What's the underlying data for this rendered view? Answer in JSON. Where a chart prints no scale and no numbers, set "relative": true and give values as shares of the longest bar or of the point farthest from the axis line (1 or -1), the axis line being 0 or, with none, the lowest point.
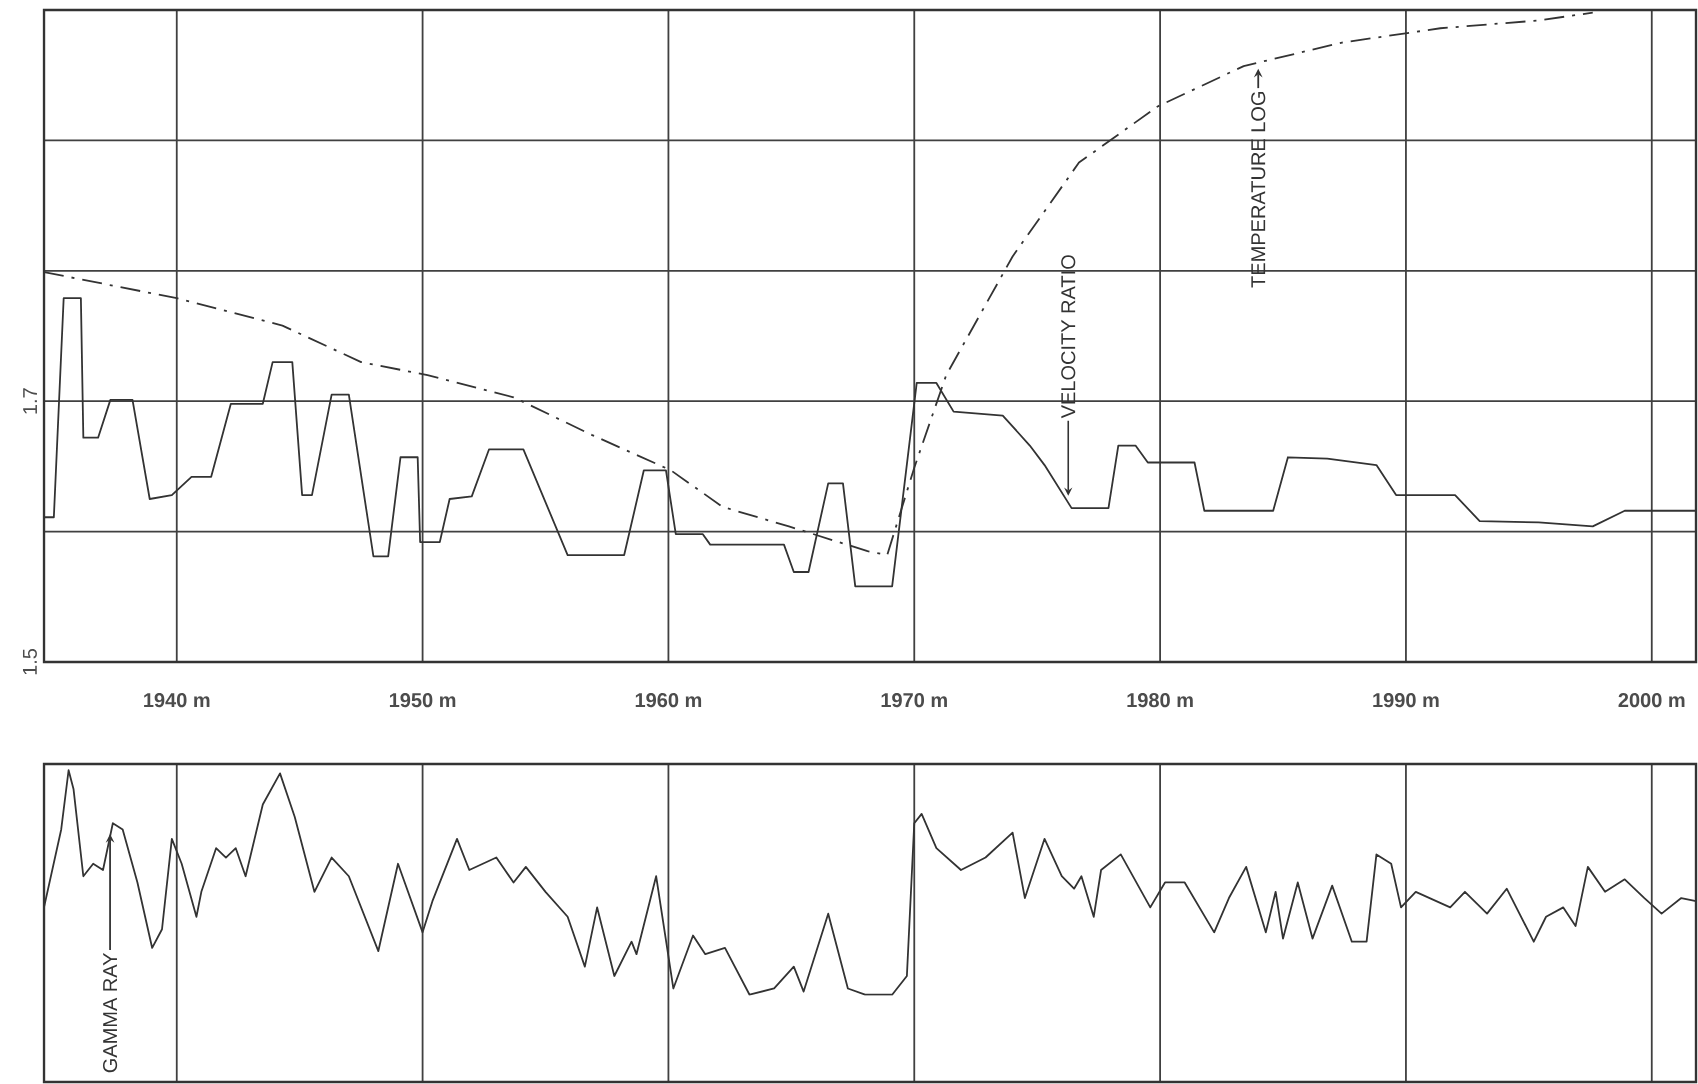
{
  "chart_data": [
    {
      "type": "line",
      "xlim": [
        1934.6,
        2001.8
      ],
      "ylim": [
        1.5,
        2.0
      ],
      "xticks": [
        {
          "value": 1940,
          "label": "1940 m"
        },
        {
          "value": 1950,
          "label": "1950 m"
        },
        {
          "value": 1960,
          "label": "1960 m"
        },
        {
          "value": 1970,
          "label": "1970 m"
        },
        {
          "value": 1980,
          "label": "1980 m"
        },
        {
          "value": 1990,
          "label": "1990 m"
        },
        {
          "value": 2000,
          "label": "2000 m"
        }
      ],
      "yticks": [
        1.5,
        {
          "value": 1.6,
          "label": null
        },
        1.7,
        {
          "value": 1.8,
          "label": null
        },
        {
          "value": 1.9,
          "label": null
        },
        {
          "value": 2.0,
          "label": null
        }
      ],
      "grid": true,
      "marker": "none",
      "series": [
        {
          "name": "VELOCITY RATIO",
          "color": "#333333",
          "line_style": "solid",
          "x": [
            1934.6,
            1935.0,
            1935.4,
            1936.1,
            1936.2,
            1936.8,
            1937.3,
            1938.2,
            1938.9,
            1939.8,
            1940.6,
            1941.4,
            1942.2,
            1943.5,
            1943.9,
            1944.7,
            1945.1,
            1945.5,
            1946.3,
            1947.0,
            1948.0,
            1948.6,
            1949.1,
            1949.8,
            1949.9,
            1950.7,
            1951.1,
            1952.0,
            1952.7,
            1954.1,
            1955.9,
            1958.2,
            1959.0,
            1959.9,
            1960.3,
            1961.4,
            1961.7,
            1964.7,
            1965.1,
            1965.7,
            1966.5,
            1967.1,
            1967.6,
            1969.1,
            1970.1,
            1970.9,
            1971.6,
            1973.6,
            1974.7,
            1975.3,
            1976.4,
            1977.9,
            1978.3,
            1979.0,
            1979.5,
            1981.4,
            1981.8,
            1984.6,
            1985.2,
            1986.8,
            1988.8,
            1989.6,
            1992.0,
            1993.0,
            1995.4,
            1997.6,
            1998.9,
            2001.8
          ],
          "values": [
            1.611,
            1.611,
            1.779,
            1.779,
            1.672,
            1.672,
            1.701,
            1.701,
            1.625,
            1.628,
            1.642,
            1.642,
            1.698,
            1.698,
            1.73,
            1.73,
            1.628,
            1.628,
            1.705,
            1.705,
            1.581,
            1.581,
            1.657,
            1.657,
            1.592,
            1.592,
            1.625,
            1.627,
            1.663,
            1.663,
            1.582,
            1.582,
            1.647,
            1.647,
            1.598,
            1.598,
            1.59,
            1.59,
            1.569,
            1.569,
            1.637,
            1.637,
            1.558,
            1.558,
            1.714,
            1.714,
            1.692,
            1.689,
            1.666,
            1.651,
            1.618,
            1.618,
            1.666,
            1.666,
            1.653,
            1.653,
            1.616,
            1.616,
            1.657,
            1.656,
            1.651,
            1.628,
            1.628,
            1.608,
            1.607,
            1.604,
            1.616,
            1.616
          ]
        },
        {
          "name": "TEMPERATURE LOG",
          "color": "#333333",
          "line_style": "dashed",
          "x": [
            1934.6,
            1940.0,
            1944.3,
            1947.5,
            1950.2,
            1953.7,
            1956.9,
            1960.1,
            1962.2,
            1964.9,
            1968.1,
            1968.9,
            1970.0,
            1971.3,
            1974.0,
            1976.7,
            1979.9,
            1983.4,
            1987.4,
            1991.4,
            1995.4,
            1997.6
          ],
          "values": [
            1.799,
            1.779,
            1.758,
            1.73,
            1.72,
            1.703,
            1.674,
            1.647,
            1.619,
            1.604,
            1.585,
            1.582,
            1.649,
            1.72,
            1.811,
            1.883,
            1.926,
            1.957,
            1.975,
            1.986,
            1.992,
            1.998
          ]
        }
      ]
    },
    {
      "type": "line",
      "relative": true,
      "xlim": [
        1934.6,
        2001.8
      ],
      "xticks": [
        1940,
        1950,
        1960,
        1970,
        1980,
        1990,
        2000
      ],
      "tick_labels": false,
      "grid": "x",
      "marker": "none",
      "series": [
        {
          "name": "GAMMA RAY",
          "color": "#333333",
          "line_style": "solid",
          "x": [
            1934.6,
            1935.3,
            1935.6,
            1935.8,
            1936.2,
            1936.6,
            1937.0,
            1937.4,
            1937.8,
            1938.4,
            1939.0,
            1939.4,
            1939.8,
            1940.2,
            1940.8,
            1941.0,
            1941.6,
            1942.0,
            1942.4,
            1942.8,
            1943.5,
            1944.2,
            1944.8,
            1945.6,
            1946.3,
            1947.0,
            1948.2,
            1949.0,
            1950.0,
            1950.4,
            1951.4,
            1951.9,
            1953.0,
            1953.7,
            1954.2,
            1955.0,
            1955.9,
            1956.6,
            1957.1,
            1957.8,
            1958.5,
            1958.7,
            1959.5,
            1960.2,
            1961.0,
            1961.5,
            1962.3,
            1963.3,
            1964.3,
            1965.1,
            1965.5,
            1966.5,
            1967.3,
            1968.0,
            1969.1,
            1969.7,
            1970.0,
            1970.3,
            1970.9,
            1971.9,
            1972.9,
            1974.0,
            1974.5,
            1975.3,
            1976.0,
            1976.5,
            1976.8,
            1977.3,
            1977.6,
            1978.4,
            1979.6,
            1980.2,
            1981.0,
            1982.2,
            1982.8,
            1983.5,
            1984.3,
            1984.7,
            1985.0,
            1985.6,
            1986.2,
            1987.0,
            1987.8,
            1988.4,
            1988.8,
            1989.4,
            1989.8,
            1990.4,
            1991.8,
            1992.4,
            1993.3,
            1994.1,
            1995.2,
            1995.7,
            1996.4,
            1996.9,
            1997.4,
            1998.1,
            1998.9,
            1999.7,
            2000.4,
            2001.2,
            2001.8
          ],
          "values": [
            0.56,
            0.81,
            1.0,
            0.94,
            0.66,
            0.7,
            0.68,
            0.83,
            0.81,
            0.64,
            0.43,
            0.49,
            0.78,
            0.7,
            0.53,
            0.61,
            0.75,
            0.72,
            0.75,
            0.66,
            0.89,
            0.99,
            0.85,
            0.61,
            0.72,
            0.66,
            0.42,
            0.7,
            0.48,
            0.58,
            0.78,
            0.68,
            0.72,
            0.64,
            0.69,
            0.61,
            0.53,
            0.37,
            0.56,
            0.34,
            0.45,
            0.41,
            0.66,
            0.3,
            0.47,
            0.41,
            0.43,
            0.28,
            0.3,
            0.37,
            0.29,
            0.54,
            0.3,
            0.28,
            0.28,
            0.34,
            0.83,
            0.86,
            0.75,
            0.68,
            0.72,
            0.8,
            0.59,
            0.78,
            0.66,
            0.62,
            0.66,
            0.53,
            0.68,
            0.73,
            0.56,
            0.64,
            0.64,
            0.48,
            0.59,
            0.69,
            0.48,
            0.61,
            0.46,
            0.64,
            0.46,
            0.63,
            0.45,
            0.45,
            0.73,
            0.7,
            0.56,
            0.61,
            0.56,
            0.61,
            0.54,
            0.62,
            0.45,
            0.53,
            0.56,
            0.5,
            0.69,
            0.61,
            0.65,
            0.59,
            0.54,
            0.59,
            0.58
          ]
        }
      ]
    }
  ]
}
